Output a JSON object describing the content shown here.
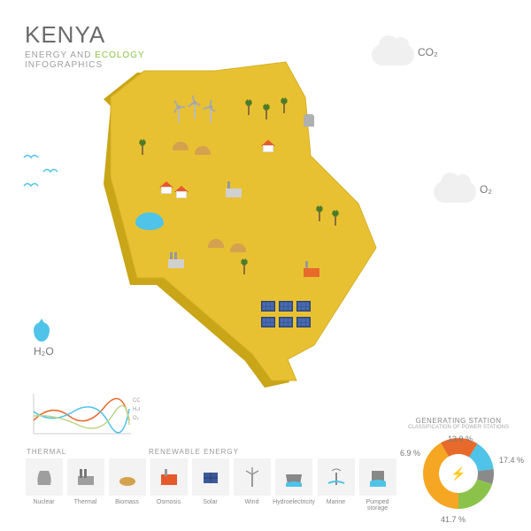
{
  "title": "KENYA",
  "subtitle_prefix": "ENERGY AND ",
  "subtitle_highlight": "ECOLOGY",
  "subtitle_suffix": " INFOGRAPHICS",
  "clouds": {
    "co2": "CO₂",
    "o2": "O₂"
  },
  "h2o_label": "H₂O",
  "map": {
    "fill": "#e8c132",
    "side": "#c9a518",
    "line_chart": {
      "co2_color": "#e86a2b",
      "h2o_color": "#4fc3e8",
      "o2_color": "#8bc34a",
      "labels": [
        "CO₂",
        "H₂O",
        "O₂"
      ]
    }
  },
  "sections": {
    "thermal": "THERMAL",
    "renewable": "RENEWABLE ENERGY"
  },
  "legend": [
    {
      "label": "Nuclear",
      "color": "#9e9e9e"
    },
    {
      "label": "Thermal",
      "color": "#9e9e9e"
    },
    {
      "label": "Biomass",
      "color": "#d4a24e"
    },
    {
      "label": "Osmosis",
      "color": "#e55a2b"
    },
    {
      "label": "Solar",
      "color": "#3a5a9a"
    },
    {
      "label": "Wind",
      "color": "#bbb"
    },
    {
      "label": "Hydroelectricity",
      "color": "#4fc3e8"
    },
    {
      "label": "Marine",
      "color": "#888"
    },
    {
      "label": "Pumped storage",
      "color": "#4fc3e8"
    }
  ],
  "donut": {
    "title": "GENERATING STATION",
    "subtitle": "CLASSIFICATION OF POWER STATIONS",
    "bolt": "⚡",
    "slices": [
      {
        "label": "41.7 %",
        "value": 41.7,
        "color": "#f5a623"
      },
      {
        "label": "17.4 %",
        "value": 17.4,
        "color": "#e86a2b"
      },
      {
        "label": "13.9 %",
        "value": 13.9,
        "color": "#4fc3e8"
      },
      {
        "label": "6.9 %",
        "value": 6.9,
        "color": "#8a8a8a"
      },
      {
        "label": "",
        "value": 20.1,
        "color": "#8bc34a"
      }
    ]
  }
}
